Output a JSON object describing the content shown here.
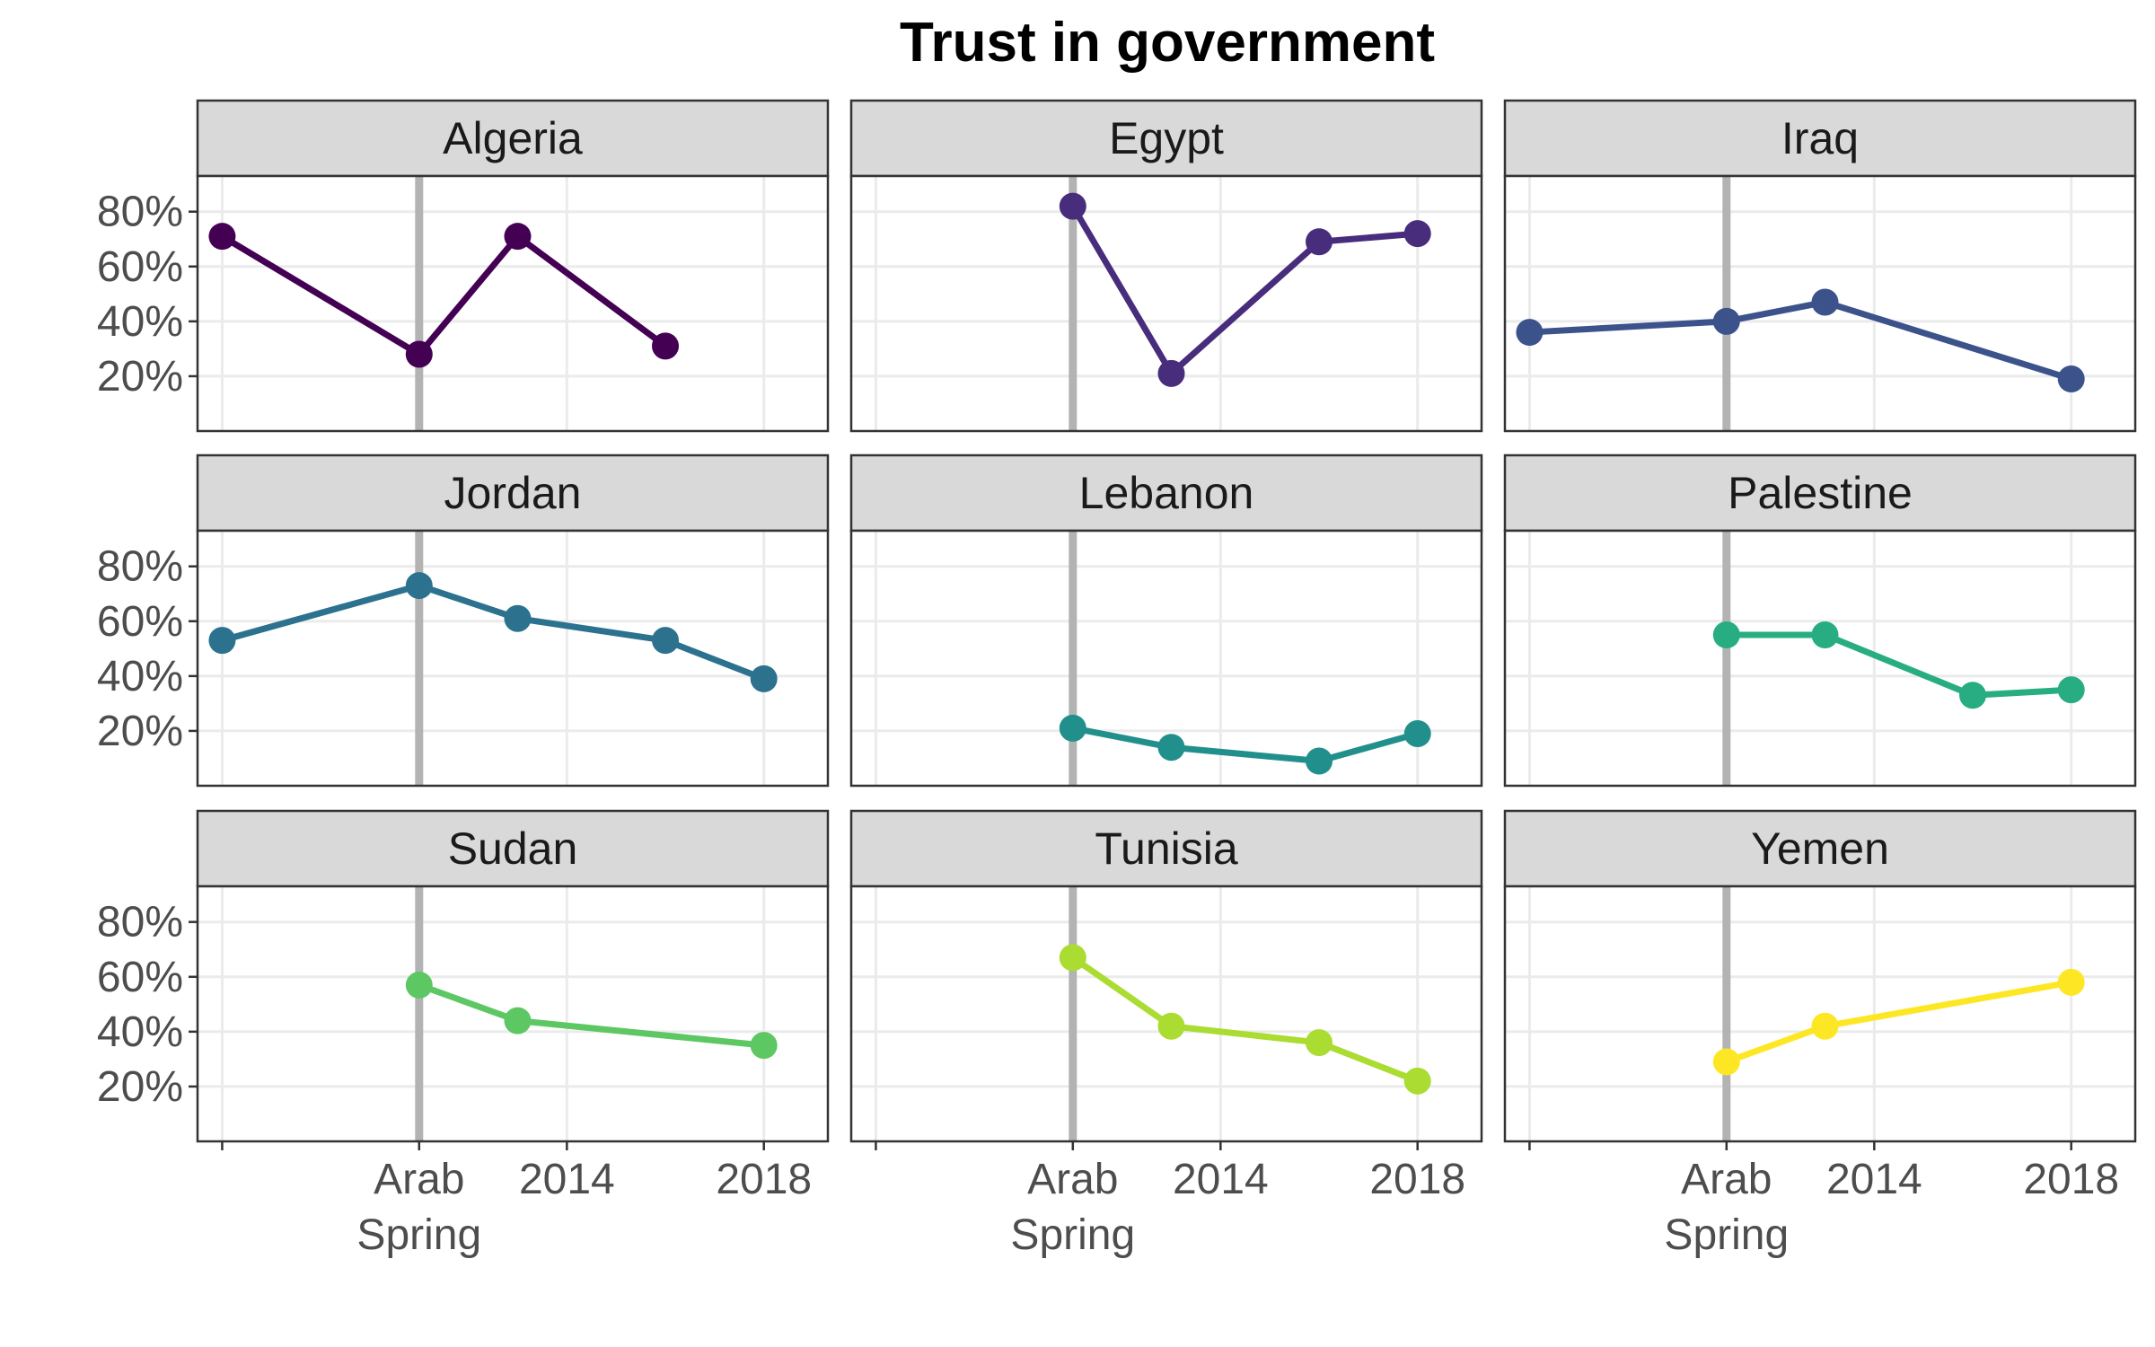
{
  "chart_data": {
    "type": "line",
    "title": "Trust in government",
    "xlabel": "",
    "ylabel": "",
    "grid": true,
    "legend": "none",
    "xlim": [
      2006.5,
      2019.3
    ],
    "ylim": [
      0,
      93
    ],
    "x_ticks": [
      {
        "x": 2007,
        "label": ""
      },
      {
        "x": 2011,
        "label": "Arab\nSpring"
      },
      {
        "x": 2014,
        "label": "2014"
      },
      {
        "x": 2018,
        "label": "2018"
      }
    ],
    "y_ticks": [
      {
        "y": 20,
        "label": "20%"
      },
      {
        "y": 40,
        "label": "40%"
      },
      {
        "y": 60,
        "label": "60%"
      },
      {
        "y": 80,
        "label": "80%"
      }
    ],
    "reference_line": {
      "x": 2011,
      "color": "#b3b3b3"
    },
    "panels": [
      {
        "name": "Algeria",
        "color": "#440154",
        "points": [
          {
            "x": 2007,
            "y": 71
          },
          {
            "x": 2011,
            "y": 28
          },
          {
            "x": 2013,
            "y": 71
          },
          {
            "x": 2016,
            "y": 31
          }
        ]
      },
      {
        "name": "Egypt",
        "color": "#472D7B",
        "points": [
          {
            "x": 2011,
            "y": 82
          },
          {
            "x": 2013,
            "y": 21
          },
          {
            "x": 2016,
            "y": 69
          },
          {
            "x": 2018,
            "y": 72
          }
        ]
      },
      {
        "name": "Iraq",
        "color": "#3B528B",
        "points": [
          {
            "x": 2007,
            "y": 36
          },
          {
            "x": 2011,
            "y": 40
          },
          {
            "x": 2013,
            "y": 47
          },
          {
            "x": 2018,
            "y": 19
          }
        ]
      },
      {
        "name": "Jordan",
        "color": "#2C728E",
        "points": [
          {
            "x": 2007,
            "y": 53
          },
          {
            "x": 2011,
            "y": 73
          },
          {
            "x": 2013,
            "y": 61
          },
          {
            "x": 2016,
            "y": 53
          },
          {
            "x": 2018,
            "y": 39
          }
        ]
      },
      {
        "name": "Lebanon",
        "color": "#21908C",
        "points": [
          {
            "x": 2011,
            "y": 21
          },
          {
            "x": 2013,
            "y": 14
          },
          {
            "x": 2016,
            "y": 9
          },
          {
            "x": 2018,
            "y": 19
          }
        ]
      },
      {
        "name": "Palestine",
        "color": "#27AD81",
        "points": [
          {
            "x": 2011,
            "y": 55
          },
          {
            "x": 2013,
            "y": 55
          },
          {
            "x": 2016,
            "y": 33
          },
          {
            "x": 2018,
            "y": 35
          }
        ]
      },
      {
        "name": "Sudan",
        "color": "#5DC863",
        "points": [
          {
            "x": 2011,
            "y": 57
          },
          {
            "x": 2013,
            "y": 44
          },
          {
            "x": 2018,
            "y": 35
          }
        ]
      },
      {
        "name": "Tunisia",
        "color": "#AADC32",
        "points": [
          {
            "x": 2011,
            "y": 67
          },
          {
            "x": 2013,
            "y": 42
          },
          {
            "x": 2016,
            "y": 36
          },
          {
            "x": 2018,
            "y": 22
          }
        ]
      },
      {
        "name": "Yemen",
        "color": "#FDE725",
        "points": [
          {
            "x": 2011,
            "y": 29
          },
          {
            "x": 2013,
            "y": 42
          },
          {
            "x": 2018,
            "y": 58
          }
        ]
      }
    ]
  }
}
